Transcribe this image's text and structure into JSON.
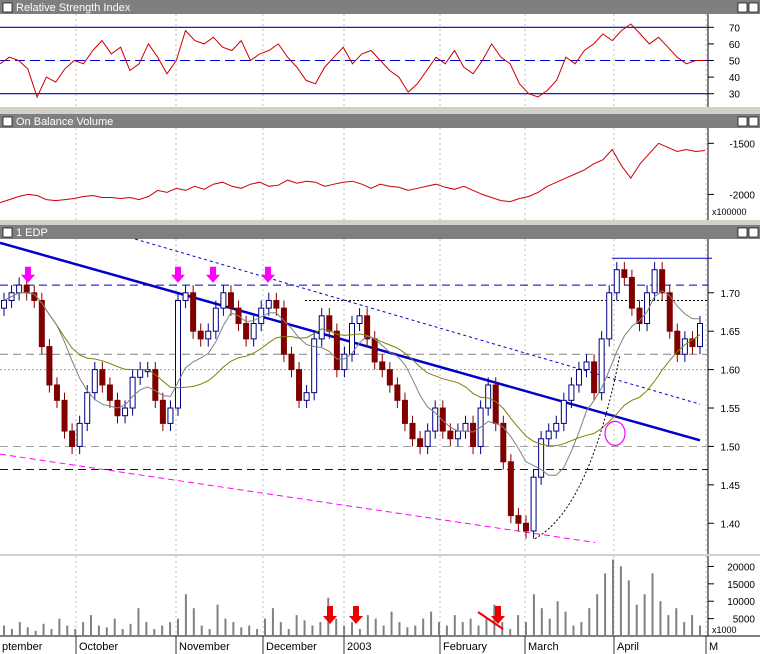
{
  "panels": {
    "rsi": {
      "title": "Relative Strength Index"
    },
    "obv": {
      "title": "On Balance Volume",
      "multiplier": "x100000"
    },
    "price": {
      "title": "1 EDP"
    },
    "volume": {
      "multiplier": "x1000"
    }
  },
  "months": [
    "ptember",
    "October",
    "November",
    "December",
    "2003",
    "February",
    "March",
    "April",
    "M"
  ],
  "colors": {
    "rsi_line": "#cc0000",
    "obv_line": "#cc0000",
    "trend_line": "#0000cc",
    "support_line": "#ff00ff",
    "annotation_arrow_magenta": "#ff00ff",
    "annotation_arrow_red": "#ee0000",
    "up_candle": "#000080",
    "down_candle": "#800000",
    "ma_olive": "#808000",
    "ma_grey": "#808080"
  },
  "chart_data": [
    {
      "type": "line",
      "title": "Relative Strength Index",
      "ylim": [
        22,
        78
      ],
      "yticks": [
        30,
        40,
        50,
        60,
        70
      ],
      "reference_levels": [
        30,
        50,
        70
      ],
      "series": [
        {
          "values": [
            48,
            52,
            50,
            45,
            28,
            40,
            37,
            45,
            50,
            48,
            56,
            62,
            54,
            58,
            44,
            48,
            60,
            52,
            42,
            50,
            68,
            62,
            60,
            64,
            58,
            56,
            62,
            50,
            54,
            56,
            60,
            52,
            46,
            38,
            36,
            46,
            52,
            58,
            48,
            54,
            56,
            50,
            44,
            40,
            31,
            36,
            44,
            52,
            48,
            56,
            46,
            42,
            50,
            60,
            52,
            48,
            36,
            30,
            28,
            32,
            38,
            52,
            48,
            56,
            60,
            66,
            62,
            68,
            72,
            66,
            60,
            64,
            58,
            52,
            48,
            50,
            50
          ]
        }
      ]
    },
    {
      "type": "line",
      "title": "On Balance Volume",
      "ylim": [
        -2250,
        -1350
      ],
      "yticks": [
        -2000,
        -1500
      ],
      "series": [
        {
          "values": [
            -2080,
            -2050,
            -2020,
            -2000,
            -2010,
            -2050,
            -2060,
            -2050,
            -2040,
            -2020,
            -2010,
            -2030,
            -2030,
            -2040,
            -2030,
            -2050,
            -2020,
            -1960,
            -1980,
            -1940,
            -1960,
            -1920,
            -1950,
            -1900,
            -1880,
            -1920,
            -1940,
            -1900,
            -1880,
            -1920,
            -1910,
            -1860,
            -1890,
            -1870,
            -1880,
            -1920,
            -1900,
            -1880,
            -1870,
            -1900,
            -1940,
            -1900,
            -1920,
            -1930,
            -1960,
            -1940,
            -1920,
            -1900,
            -1930,
            -1950,
            -1920,
            -1960,
            -2000,
            -2030,
            -2060,
            -2070,
            -2040,
            -2020,
            -1980,
            -1920,
            -1880,
            -1840,
            -1800,
            -1760,
            -1700,
            -1660,
            -1560,
            -1720,
            -1840,
            -1700,
            -1600,
            -1500,
            -1540,
            -1580,
            -1560,
            -1580,
            -1570
          ]
        }
      ]
    },
    {
      "type": "bar",
      "title": "1 EDP",
      "ylim": [
        1.36,
        1.77
      ],
      "yticks": [
        1.4,
        1.45,
        1.5,
        1.55,
        1.6,
        1.65,
        1.7
      ],
      "series": [
        {
          "name": "1 EDP",
          "values": [
            1.69,
            1.7,
            1.71,
            1.7,
            1.69,
            1.63,
            1.58,
            1.56,
            1.52,
            1.5,
            1.53,
            1.57,
            1.6,
            1.58,
            1.56,
            1.54,
            1.55,
            1.59,
            1.6,
            1.6,
            1.56,
            1.53,
            1.55,
            1.69,
            1.7,
            1.65,
            1.64,
            1.65,
            1.68,
            1.7,
            1.68,
            1.66,
            1.64,
            1.66,
            1.68,
            1.69,
            1.68,
            1.62,
            1.6,
            1.56,
            1.57,
            1.64,
            1.67,
            1.65,
            1.6,
            1.62,
            1.66,
            1.67,
            1.64,
            1.61,
            1.6,
            1.58,
            1.56,
            1.53,
            1.51,
            1.5,
            1.52,
            1.55,
            1.52,
            1.51,
            1.52,
            1.53,
            1.5,
            1.55,
            1.58,
            1.53,
            1.48,
            1.41,
            1.4,
            1.39,
            1.46,
            1.51,
            1.52,
            1.53,
            1.56,
            1.58,
            1.6,
            1.61,
            1.57,
            1.64,
            1.7,
            1.73,
            1.72,
            1.68,
            1.66,
            1.7,
            1.73,
            1.7,
            1.65,
            1.62,
            1.64,
            1.63,
            1.66
          ]
        }
      ]
    },
    {
      "type": "bar",
      "title": "",
      "ylim": [
        0,
        23000
      ],
      "yticks": [
        5000,
        10000,
        15000,
        20000
      ],
      "series": [
        {
          "values": [
            3000,
            2000,
            4000,
            2500,
            1500,
            3500,
            2000,
            5000,
            3000,
            2000,
            4000,
            6000,
            3000,
            2500,
            5000,
            2000,
            3500,
            8000,
            4000,
            2000,
            3000,
            4000,
            5000,
            12000,
            8000,
            3000,
            2000,
            9000,
            5000,
            4000,
            2500,
            3000,
            2000,
            5000,
            8000,
            4000,
            2000,
            6000,
            4500,
            3000,
            4000,
            11000,
            5000,
            3000,
            4000,
            2000,
            6000,
            5000,
            3000,
            7000,
            4000,
            2500,
            3000,
            5000,
            7000,
            4000,
            3000,
            6000,
            4000,
            5000,
            3000,
            5000,
            9000,
            4000,
            2000,
            6000,
            4000,
            12000,
            8000,
            5000,
            10000,
            7000,
            3000,
            4000,
            8000,
            12000,
            18000,
            22000,
            20000,
            16000,
            9000,
            12000,
            18000,
            10000,
            6000,
            8000,
            4000,
            6000,
            3000
          ]
        }
      ]
    }
  ]
}
